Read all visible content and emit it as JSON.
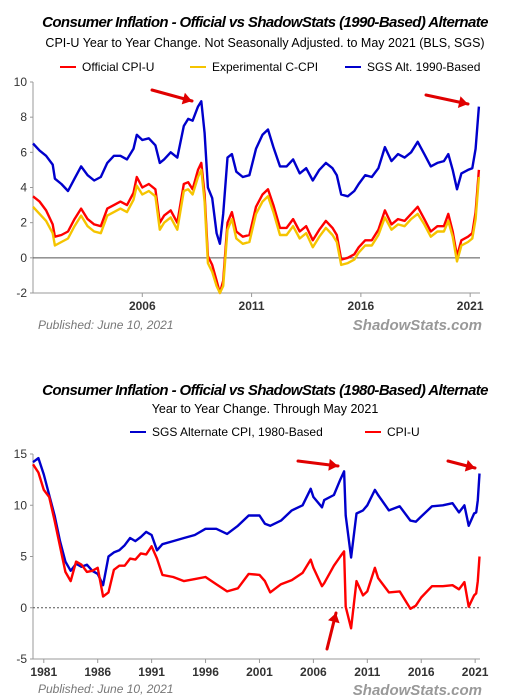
{
  "chart_data": [
    {
      "type": "line",
      "title": "Consumer Inflation - Official vs ShadowStats (1990-Based) Alternate",
      "subtitle": "CPI-U Year to Year Change. Not Seasonally Adjusted. to May 2021  (BLS, SGS)",
      "xlabel": "",
      "ylabel": "",
      "xlim": [
        2001.0,
        2021.45
      ],
      "ylim": [
        -2,
        10
      ],
      "yticks": [
        -2,
        0,
        2,
        4,
        6,
        8,
        10
      ],
      "xticks": [
        2006,
        2011,
        2016,
        2021
      ],
      "xtick_labels": [
        "2006",
        "2011",
        "2016",
        "2021"
      ],
      "legend_position": "top",
      "grid": false,
      "published": "Published: June 10, 2021",
      "brand": "ShadowStats.com",
      "series": [
        {
          "name": "Official CPI-U",
          "color": "#ff0000",
          "x": [
            2001.0,
            2001.3,
            2001.6,
            2001.9,
            2002.0,
            2002.3,
            2002.6,
            2002.9,
            2003.2,
            2003.5,
            2003.8,
            2004.1,
            2004.4,
            2004.7,
            2005.0,
            2005.3,
            2005.6,
            2005.75,
            2006.0,
            2006.3,
            2006.6,
            2006.8,
            2007.0,
            2007.3,
            2007.6,
            2007.9,
            2008.1,
            2008.3,
            2008.55,
            2008.7,
            2008.85,
            2009.0,
            2009.2,
            2009.4,
            2009.55,
            2009.7,
            2009.9,
            2010.1,
            2010.3,
            2010.6,
            2010.9,
            2011.2,
            2011.5,
            2011.75,
            2012.0,
            2012.3,
            2012.6,
            2012.9,
            2013.2,
            2013.5,
            2013.8,
            2014.1,
            2014.4,
            2014.7,
            2014.9,
            2015.1,
            2015.4,
            2015.7,
            2015.9,
            2016.2,
            2016.5,
            2016.8,
            2017.1,
            2017.4,
            2017.7,
            2018.0,
            2018.3,
            2018.6,
            2018.9,
            2019.2,
            2019.5,
            2019.8,
            2020.0,
            2020.2,
            2020.4,
            2020.6,
            2020.9,
            2021.1,
            2021.25,
            2021.4
          ],
          "values": [
            3.5,
            3.2,
            2.7,
            1.9,
            1.2,
            1.3,
            1.5,
            2.2,
            2.8,
            2.2,
            1.9,
            1.8,
            2.8,
            3.0,
            3.2,
            3.0,
            3.7,
            4.6,
            4.0,
            4.2,
            3.9,
            2.0,
            2.4,
            2.7,
            2.0,
            4.2,
            4.3,
            3.9,
            5.0,
            5.4,
            3.6,
            0.1,
            -0.4,
            -1.3,
            -2.0,
            -1.3,
            2.0,
            2.6,
            1.5,
            1.2,
            1.3,
            2.9,
            3.6,
            3.9,
            3.0,
            1.7,
            1.7,
            2.2,
            1.5,
            1.8,
            1.0,
            1.6,
            2.1,
            1.7,
            1.3,
            -0.1,
            0.0,
            0.2,
            0.6,
            1.0,
            1.0,
            1.6,
            2.7,
            1.9,
            2.2,
            2.1,
            2.5,
            2.9,
            2.2,
            1.5,
            1.8,
            1.8,
            2.5,
            1.5,
            0.1,
            1.0,
            1.2,
            1.4,
            2.6,
            5.0
          ]
        },
        {
          "name": "Experimental C-CPI",
          "color": "#f5c400",
          "x": [
            2001.0,
            2001.3,
            2001.6,
            2001.9,
            2002.0,
            2002.3,
            2002.6,
            2002.9,
            2003.2,
            2003.5,
            2003.8,
            2004.1,
            2004.4,
            2004.7,
            2005.0,
            2005.3,
            2005.6,
            2005.75,
            2006.0,
            2006.3,
            2006.6,
            2006.8,
            2007.0,
            2007.3,
            2007.6,
            2007.9,
            2008.1,
            2008.3,
            2008.55,
            2008.7,
            2008.85,
            2009.0,
            2009.2,
            2009.4,
            2009.55,
            2009.7,
            2009.9,
            2010.1,
            2010.3,
            2010.6,
            2010.9,
            2011.2,
            2011.5,
            2011.75,
            2012.0,
            2012.3,
            2012.6,
            2012.9,
            2013.2,
            2013.5,
            2013.8,
            2014.1,
            2014.4,
            2014.7,
            2014.9,
            2015.1,
            2015.4,
            2015.7,
            2015.9,
            2016.2,
            2016.5,
            2016.8,
            2017.1,
            2017.4,
            2017.7,
            2018.0,
            2018.3,
            2018.6,
            2018.9,
            2019.2,
            2019.5,
            2019.8,
            2020.0,
            2020.2,
            2020.4,
            2020.6,
            2020.9,
            2021.1,
            2021.25,
            2021.4
          ],
          "values": [
            2.9,
            2.5,
            2.1,
            1.4,
            0.7,
            0.9,
            1.1,
            1.8,
            2.4,
            1.8,
            1.5,
            1.4,
            2.4,
            2.6,
            2.8,
            2.6,
            3.3,
            4.1,
            3.6,
            3.8,
            3.5,
            1.6,
            2.0,
            2.3,
            1.6,
            3.8,
            3.9,
            3.6,
            4.6,
            5.0,
            3.2,
            -0.3,
            -0.8,
            -1.6,
            -2.0,
            -1.6,
            1.6,
            2.2,
            1.1,
            0.8,
            0.9,
            2.5,
            3.2,
            3.5,
            2.6,
            1.3,
            1.3,
            1.8,
            1.1,
            1.4,
            0.6,
            1.2,
            1.7,
            1.3,
            0.9,
            -0.4,
            -0.3,
            -0.1,
            0.3,
            0.7,
            0.7,
            1.3,
            2.3,
            1.6,
            1.9,
            1.8,
            2.2,
            2.5,
            1.9,
            1.2,
            1.5,
            1.5,
            2.1,
            1.2,
            -0.2,
            0.7,
            0.9,
            1.1,
            2.2,
            4.6
          ]
        },
        {
          "name": "SGS  Alt. 1990-Based",
          "color": "#0000cc",
          "x": [
            2001.0,
            2001.3,
            2001.6,
            2001.9,
            2002.0,
            2002.3,
            2002.6,
            2002.9,
            2003.2,
            2003.5,
            2003.8,
            2004.1,
            2004.4,
            2004.7,
            2005.0,
            2005.3,
            2005.6,
            2005.75,
            2006.0,
            2006.3,
            2006.6,
            2006.8,
            2007.0,
            2007.3,
            2007.6,
            2007.9,
            2008.1,
            2008.3,
            2008.55,
            2008.7,
            2008.85,
            2009.0,
            2009.2,
            2009.4,
            2009.55,
            2009.7,
            2009.9,
            2010.1,
            2010.3,
            2010.6,
            2010.9,
            2011.2,
            2011.5,
            2011.75,
            2012.0,
            2012.3,
            2012.6,
            2012.9,
            2013.2,
            2013.5,
            2013.8,
            2014.1,
            2014.4,
            2014.7,
            2014.9,
            2015.1,
            2015.4,
            2015.7,
            2015.9,
            2016.2,
            2016.5,
            2016.8,
            2017.1,
            2017.4,
            2017.7,
            2018.0,
            2018.3,
            2018.6,
            2018.9,
            2019.2,
            2019.5,
            2019.8,
            2020.0,
            2020.2,
            2020.4,
            2020.6,
            2020.9,
            2021.1,
            2021.25,
            2021.4
          ],
          "values": [
            6.5,
            6.1,
            5.8,
            5.3,
            4.5,
            4.2,
            3.8,
            4.5,
            5.2,
            4.7,
            4.4,
            4.6,
            5.4,
            5.8,
            5.8,
            5.6,
            6.2,
            7.0,
            6.7,
            6.8,
            6.4,
            5.4,
            5.6,
            6.0,
            5.7,
            7.5,
            7.9,
            7.8,
            8.6,
            8.9,
            7.1,
            4.0,
            3.4,
            1.4,
            0.8,
            2.5,
            5.7,
            5.9,
            4.9,
            4.6,
            4.7,
            6.2,
            7.0,
            7.3,
            6.3,
            5.2,
            5.2,
            5.6,
            4.8,
            5.1,
            4.4,
            5.0,
            5.4,
            5.1,
            4.7,
            3.6,
            3.5,
            3.8,
            4.2,
            4.7,
            4.6,
            5.1,
            6.3,
            5.5,
            5.9,
            5.7,
            6.0,
            6.6,
            5.9,
            5.2,
            5.4,
            5.5,
            5.9,
            5.0,
            3.9,
            4.8,
            5.0,
            5.1,
            6.2,
            8.6
          ]
        }
      ]
    },
    {
      "type": "line",
      "title": "Consumer Inflation - Official vs ShadowStats (1980-Based) Alternate",
      "subtitle": "Year to Year Change. Through May 2021",
      "xlabel": "",
      "ylabel": "",
      "xlim": [
        1980.0,
        2021.45
      ],
      "ylim": [
        -5,
        15
      ],
      "yticks": [
        -5,
        0,
        5,
        10,
        15
      ],
      "xticks": [
        1981,
        1986,
        1991,
        1996,
        2001,
        2006,
        2011,
        2016,
        2021
      ],
      "xtick_labels": [
        "1981",
        "1986",
        "1991",
        "1996",
        "2001",
        "2006",
        "2011",
        "2016",
        "2021"
      ],
      "legend_position": "top",
      "grid": false,
      "published": "Published: June 10, 2021",
      "brand": "ShadowStats.com",
      "series": [
        {
          "name": "SGS Alternate CPI, 1980-Based",
          "color": "#0000cc",
          "x": [
            1980.0,
            1980.5,
            1981.0,
            1981.5,
            1982.0,
            1982.5,
            1983.0,
            1983.5,
            1984.0,
            1984.5,
            1985.0,
            1985.5,
            1986.0,
            1986.5,
            1987.0,
            1987.5,
            1988.0,
            1988.5,
            1989.0,
            1989.5,
            1990.0,
            1990.5,
            1991.0,
            1991.5,
            1992.0,
            1993.0,
            1994.0,
            1995.0,
            1996.0,
            1997.0,
            1998.0,
            1999.0,
            2000.0,
            2001.0,
            2001.5,
            2002.0,
            2003.0,
            2004.0,
            2005.0,
            2005.75,
            2006.0,
            2006.8,
            2007.0,
            2007.9,
            2008.5,
            2008.85,
            2009.0,
            2009.5,
            2010.0,
            2010.6,
            2011.0,
            2011.7,
            2012.0,
            2013.0,
            2014.0,
            2015.0,
            2015.5,
            2016.0,
            2017.0,
            2018.0,
            2018.9,
            2019.5,
            2020.0,
            2020.4,
            2020.9,
            2021.1,
            2021.25,
            2021.4
          ],
          "values": [
            14.2,
            14.6,
            13.0,
            11.0,
            9.0,
            6.5,
            4.5,
            3.6,
            4.3,
            4.0,
            4.2,
            3.6,
            3.3,
            2.2,
            5.0,
            5.4,
            5.6,
            6.1,
            6.8,
            6.5,
            6.9,
            7.4,
            7.1,
            5.6,
            6.2,
            6.5,
            6.8,
            7.1,
            7.7,
            7.7,
            7.2,
            8.0,
            9.0,
            9.0,
            8.2,
            8.0,
            8.5,
            9.5,
            10.0,
            11.6,
            10.8,
            9.8,
            10.5,
            11.0,
            12.5,
            13.3,
            9.0,
            4.9,
            9.2,
            9.5,
            10.0,
            11.5,
            11.0,
            9.5,
            9.9,
            8.5,
            8.4,
            8.9,
            9.9,
            10.0,
            10.2,
            9.3,
            10.0,
            8.0,
            9.2,
            9.3,
            10.5,
            13.1
          ]
        },
        {
          "name": "CPI-U",
          "color": "#ff0000",
          "x": [
            1980.0,
            1980.5,
            1981.0,
            1981.5,
            1982.0,
            1982.5,
            1983.0,
            1983.5,
            1984.0,
            1984.5,
            1985.0,
            1985.5,
            1986.0,
            1986.5,
            1987.0,
            1987.5,
            1988.0,
            1988.5,
            1989.0,
            1989.5,
            1990.0,
            1990.5,
            1991.0,
            1991.5,
            1992.0,
            1993.0,
            1994.0,
            1995.0,
            1996.0,
            1997.0,
            1998.0,
            1999.0,
            2000.0,
            2001.0,
            2001.5,
            2002.0,
            2003.0,
            2004.0,
            2005.0,
            2005.75,
            2006.0,
            2006.8,
            2007.0,
            2007.9,
            2008.5,
            2008.85,
            2009.0,
            2009.5,
            2010.0,
            2010.6,
            2011.0,
            2011.7,
            2012.0,
            2013.0,
            2014.0,
            2015.0,
            2015.5,
            2016.0,
            2017.0,
            2018.0,
            2018.9,
            2019.5,
            2020.0,
            2020.4,
            2020.9,
            2021.1,
            2021.25,
            2021.4
          ],
          "values": [
            14.0,
            13.2,
            11.5,
            10.8,
            8.5,
            6.0,
            3.5,
            2.6,
            4.5,
            4.2,
            3.5,
            3.6,
            3.9,
            1.1,
            1.5,
            3.7,
            4.1,
            4.1,
            4.8,
            4.7,
            5.3,
            5.2,
            6.0,
            4.8,
            3.2,
            3.0,
            2.6,
            2.8,
            3.0,
            2.3,
            1.6,
            1.9,
            3.3,
            3.2,
            2.6,
            1.5,
            2.3,
            2.7,
            3.4,
            4.7,
            3.9,
            2.1,
            2.4,
            4.1,
            5.0,
            5.5,
            0.1,
            -2.0,
            2.6,
            1.2,
            1.6,
            3.9,
            2.9,
            1.5,
            1.6,
            -0.1,
            0.2,
            1.0,
            2.1,
            2.1,
            2.2,
            1.8,
            2.5,
            0.1,
            1.2,
            1.4,
            2.6,
            5.0
          ]
        }
      ]
    }
  ]
}
